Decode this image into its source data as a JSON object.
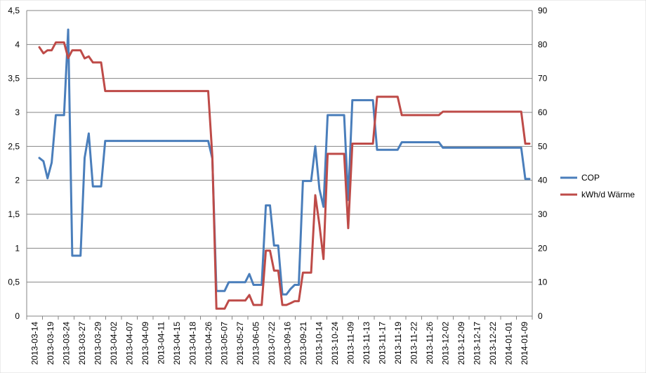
{
  "chart_data": {
    "type": "line",
    "title": "",
    "xlabel": "",
    "ylabel": "",
    "y2label": "",
    "ylim": [
      0,
      4.5
    ],
    "y2lim": [
      0,
      90
    ],
    "y_ticks": [
      "0",
      "0,5",
      "1",
      "1,5",
      "2",
      "2,5",
      "3",
      "3,5",
      "4",
      "4,5"
    ],
    "y2_ticks": [
      "0",
      "10",
      "20",
      "30",
      "40",
      "50",
      "60",
      "70",
      "80",
      "90"
    ],
    "x_tick_labels": [
      "2013-03-14",
      "2013-03-19",
      "2013-03-24",
      "2013-03-27",
      "2013-03-29",
      "2013-04-02",
      "2013-04-07",
      "2013-04-09",
      "2013-04-11",
      "2013-04-15",
      "2013-04-18",
      "2013-04-26",
      "2013-05-07",
      "2013-05-27",
      "2013-06-05",
      "2013-07-22",
      "2013-09-16",
      "2013-09-21",
      "2013-10-14",
      "2013-10-24",
      "2013-11-09",
      "2013-11-13",
      "2013-11-17",
      "2013-11-19",
      "2013-11-22",
      "2013-11-26",
      "2013-12-02",
      "2013-12-09",
      "2013-12-17",
      "2013-12-22",
      "2014-01-01",
      "2014-01-09"
    ],
    "grid": true,
    "legend_position": "right",
    "series": [
      {
        "name": "COP",
        "axis": "left",
        "color": "#4a7ebb",
        "values": [
          2.33,
          2.28,
          2.03,
          2.26,
          2.96,
          2.96,
          2.96,
          4.22,
          0.89,
          0.89,
          0.89,
          2.33,
          2.69,
          1.91,
          1.91,
          1.91,
          2.58,
          2.58,
          2.58,
          2.58,
          2.58,
          2.58,
          2.58,
          2.58,
          2.58,
          2.58,
          2.58,
          2.58,
          2.58,
          2.58,
          2.58,
          2.58,
          2.58,
          2.58,
          2.58,
          2.58,
          2.58,
          2.58,
          2.58,
          2.58,
          2.58,
          2.58,
          2.32,
          0.37,
          0.37,
          0.37,
          0.5,
          0.5,
          0.5,
          0.5,
          0.5,
          0.62,
          0.46,
          0.46,
          0.46,
          1.63,
          1.63,
          1.04,
          1.04,
          0.32,
          0.32,
          0.4,
          0.46,
          0.46,
          1.99,
          1.99,
          1.99,
          2.5,
          1.87,
          1.61,
          2.96,
          2.96,
          2.96,
          2.96,
          2.96,
          1.71,
          3.18,
          3.18,
          3.18,
          3.18,
          3.18,
          3.18,
          2.45,
          2.45,
          2.45,
          2.45,
          2.45,
          2.45,
          2.56,
          2.56,
          2.56,
          2.56,
          2.56,
          2.56,
          2.56,
          2.56,
          2.56,
          2.56,
          2.48,
          2.48,
          2.48,
          2.48,
          2.48,
          2.48,
          2.48,
          2.48,
          2.48,
          2.48,
          2.48,
          2.48,
          2.48,
          2.48,
          2.48,
          2.48,
          2.48,
          2.48,
          2.48,
          2.48,
          2.02,
          2.02
        ]
      },
      {
        "name": "kWh/d Wärme",
        "axis": "right",
        "color": "#be4b48",
        "values": [
          79.2,
          77.4,
          78.3,
          78.3,
          80.6,
          80.6,
          80.6,
          76.0,
          78.3,
          78.3,
          78.3,
          75.9,
          76.5,
          74.7,
          74.7,
          74.7,
          66.3,
          66.3,
          66.3,
          66.3,
          66.3,
          66.3,
          66.3,
          66.3,
          66.3,
          66.3,
          66.3,
          66.3,
          66.3,
          66.3,
          66.3,
          66.3,
          66.3,
          66.3,
          66.3,
          66.3,
          66.3,
          66.3,
          66.3,
          66.3,
          66.3,
          66.3,
          47.0,
          2.2,
          2.2,
          2.2,
          4.6,
          4.6,
          4.6,
          4.6,
          4.6,
          6.2,
          3.3,
          3.3,
          3.3,
          19.3,
          19.3,
          13.4,
          13.4,
          3.3,
          3.3,
          3.8,
          4.4,
          4.4,
          12.8,
          12.8,
          12.8,
          35.6,
          26.9,
          16.8,
          47.8,
          47.8,
          47.8,
          47.8,
          47.8,
          25.9,
          50.8,
          50.8,
          50.8,
          50.8,
          50.8,
          50.8,
          64.6,
          64.6,
          64.6,
          64.6,
          64.6,
          64.6,
          59.2,
          59.2,
          59.2,
          59.2,
          59.2,
          59.2,
          59.2,
          59.2,
          59.2,
          59.2,
          60.2,
          60.2,
          60.2,
          60.2,
          60.2,
          60.2,
          60.2,
          60.2,
          60.2,
          60.2,
          60.2,
          60.2,
          60.2,
          60.2,
          60.2,
          60.2,
          60.2,
          60.2,
          60.2,
          60.2,
          50.8,
          50.8
        ]
      }
    ]
  }
}
